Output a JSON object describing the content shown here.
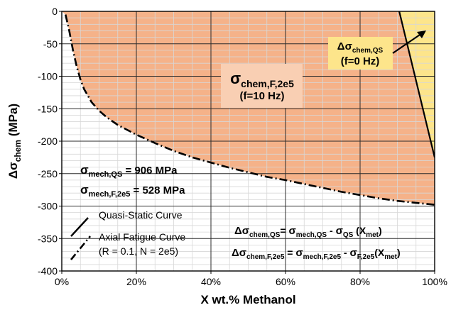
{
  "chart_data": {
    "type": "area",
    "xlabel": "X wt.% Methanol",
    "ylabel_main": "Δσ",
    "ylabel_sub": "chem",
    "ylabel_unit": " (MPa)",
    "xlim": [
      0,
      100
    ],
    "ylim": [
      -400,
      0
    ],
    "x_ticks": [
      0,
      20,
      40,
      60,
      80,
      100
    ],
    "x_tick_labels": [
      "0%",
      "20%",
      "40%",
      "60%",
      "80%",
      "100%"
    ],
    "y_ticks": [
      0,
      -50,
      -100,
      -150,
      -200,
      -250,
      -300,
      -350,
      -400
    ],
    "y_tick_labels": [
      "0",
      "-50",
      "-100",
      "-150",
      "-200",
      "-250",
      "-300",
      "-350",
      "-400"
    ],
    "grid": true,
    "series": [
      {
        "name": "Quasi-Static Curve",
        "style": "solid",
        "x": [
          90.5,
          100
        ],
        "y": [
          0,
          -225
        ]
      },
      {
        "name": "Axial Fatigue Curve",
        "style": "dash-dot",
        "x": [
          1,
          2,
          3,
          4,
          5,
          6,
          8,
          10,
          12,
          15,
          20,
          25,
          30,
          35,
          40,
          45,
          50,
          55,
          60,
          65,
          70,
          75,
          80,
          85,
          90,
          95,
          100
        ],
        "y": [
          -5,
          -30,
          -60,
          -85,
          -105,
          -120,
          -140,
          -153,
          -163,
          -175,
          -190,
          -203,
          -215,
          -225,
          -233,
          -241,
          -248,
          -255,
          -260,
          -266,
          -272,
          -278,
          -283,
          -288,
          -292,
          -295,
          -298
        ]
      }
    ],
    "regions": [
      {
        "name": "fatigue",
        "color": "#f5b289"
      },
      {
        "name": "quasi-static",
        "color": "#fde58b"
      }
    ],
    "legend_placement": "bottom-left",
    "legend_entries": {
      "qs": "Quasi-Static Curve",
      "af": "Axial Fatigue Curve",
      "af_params": "(R = 0.1, N = 2e5)"
    },
    "annotations": {
      "fatigue_sigma": "σ",
      "fatigue_sub": "chem,F,2e5",
      "fatigue_freq": "(f=10 Hz)",
      "qs_delta": "Δσ",
      "qs_sub": "chem,QS",
      "qs_freq": "(f=0 Hz)",
      "mech_qs_sigma": "σ",
      "mech_qs_sub": "mech,QS",
      "mech_qs_value": " = 906 MPa",
      "mech_f_sigma": "σ",
      "mech_f_sub": "mech,F,2e5",
      "mech_f_value": " = 528 MPa",
      "eq1": {
        "lhs": "Δσ",
        "lhs_sub": "chem,QS",
        "eq": "= ",
        "a": "σ",
        "a_sub": "mech,QS",
        "minus": " - ",
        "b": "σ",
        "b_sub": "QS",
        "arg_open": " (X",
        "arg_sub": "met",
        "arg_close": ")"
      },
      "eq2": {
        "lhs": "Δσ",
        "lhs_sub": "chem,F,2e5",
        "eq": " = ",
        "a": "σ",
        "a_sub": "mech,F,2e5",
        "minus": " - ",
        "b": "σ",
        "b_sub": "F,2e5",
        "arg_open": "(X",
        "arg_sub": "met",
        "arg_close": ")"
      }
    },
    "colors": {
      "fatigue_fill": "#f5b289",
      "qs_fill": "#fde58b",
      "fatigue_box": "#f9cfb3",
      "qs_box": "#fde58b",
      "grid_major": "#2b2b2b",
      "grid_minor": "#d7d7d7"
    }
  }
}
